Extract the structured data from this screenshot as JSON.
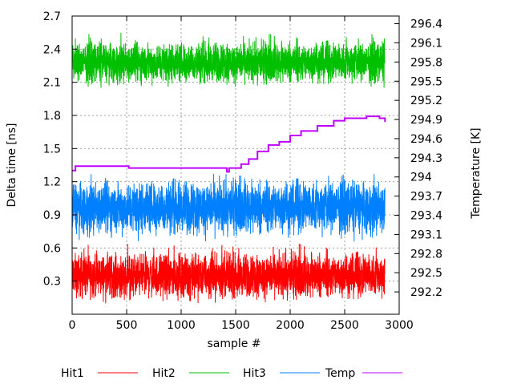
{
  "chart_data": {
    "type": "line",
    "xlabel": "sample #",
    "ylabel": "Delta time [ns]",
    "y2label": "Temperature [K]",
    "xlim": [
      0,
      3000
    ],
    "ylim": [
      0,
      2.7
    ],
    "y2lim": [
      291.85,
      296.52
    ],
    "grid": true,
    "legend_position": "bottom",
    "xticks": [
      "0",
      "500",
      "1000",
      "1500",
      "2000",
      "2500",
      "3000"
    ],
    "yticks": [
      "0.3",
      "0.6",
      "0.9",
      "1.2",
      "1.5",
      "1.8",
      "2.1",
      "2.4",
      "2.7"
    ],
    "y2ticks": [
      "292.2",
      "292.5",
      "292.8",
      "293.1",
      "293.4",
      "293.7",
      "294",
      "294.3",
      "294.6",
      "294.9",
      "295.2",
      "295.5",
      "295.8",
      "296.1",
      "296.4"
    ],
    "series": [
      {
        "name": "Hit1",
        "color": "#ff0000",
        "axis": "left",
        "samples": 2870,
        "mean": 0.35,
        "min": 0.1,
        "max": 0.65
      },
      {
        "name": "Hit2",
        "color": "#00c000",
        "axis": "left",
        "samples": 2870,
        "mean": 2.28,
        "min": 2.05,
        "max": 2.55
      },
      {
        "name": "Hit3",
        "color": "#0080ff",
        "axis": "left",
        "samples": 2870,
        "mean": 0.97,
        "min": 0.65,
        "max": 1.27
      },
      {
        "name": "Temp",
        "color": "#c000ff",
        "axis": "right",
        "x": [
          0,
          30,
          500,
          520,
          1400,
          1420,
          1440,
          1550,
          1620,
          1700,
          1800,
          1900,
          2000,
          2100,
          2250,
          2400,
          2500,
          2700,
          2820,
          2870
        ],
        "y": [
          294.1,
          294.17,
          294.17,
          294.14,
          294.14,
          294.08,
          294.14,
          294.2,
          294.28,
          294.4,
          294.5,
          294.55,
          294.65,
          294.72,
          294.8,
          294.88,
          294.92,
          294.95,
          294.92,
          294.86
        ]
      }
    ]
  }
}
